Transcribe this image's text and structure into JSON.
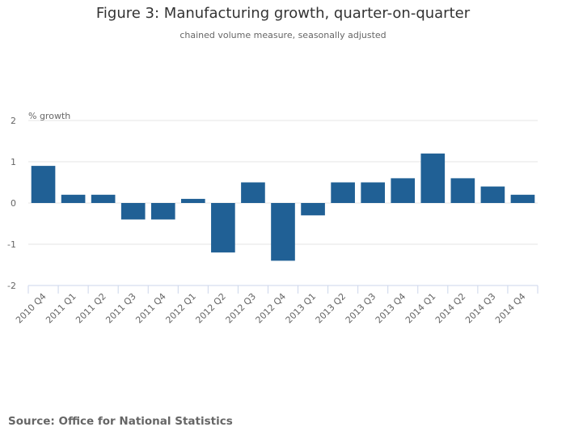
{
  "chart_data": {
    "type": "bar",
    "title": "Figure 3: Manufacturing growth, quarter-on-quarter",
    "subtitle": "chained volume measure, seasonally adjusted",
    "ylabel": "% growth",
    "xlabel": "",
    "ylim": [
      -2,
      2
    ],
    "yticks": [
      2,
      1,
      0,
      -1,
      -2
    ],
    "grid": true,
    "categories": [
      "2010 Q4",
      "2011 Q1",
      "2011 Q2",
      "2011 Q3",
      "2011 Q4",
      "2012 Q1",
      "2012 Q2",
      "2012 Q3",
      "2012 Q4",
      "2013 Q1",
      "2013 Q2",
      "2013 Q3",
      "2013 Q4",
      "2014 Q1",
      "2014 Q2",
      "2014 Q3",
      "2014 Q4"
    ],
    "values": [
      0.9,
      0.2,
      0.2,
      -0.4,
      -0.4,
      0.1,
      -1.2,
      0.5,
      -1.4,
      -0.3,
      0.5,
      0.5,
      0.6,
      1.2,
      0.6,
      0.4,
      0.2
    ],
    "bar_color": "#206095",
    "source": "Source: Office for National Statistics"
  }
}
